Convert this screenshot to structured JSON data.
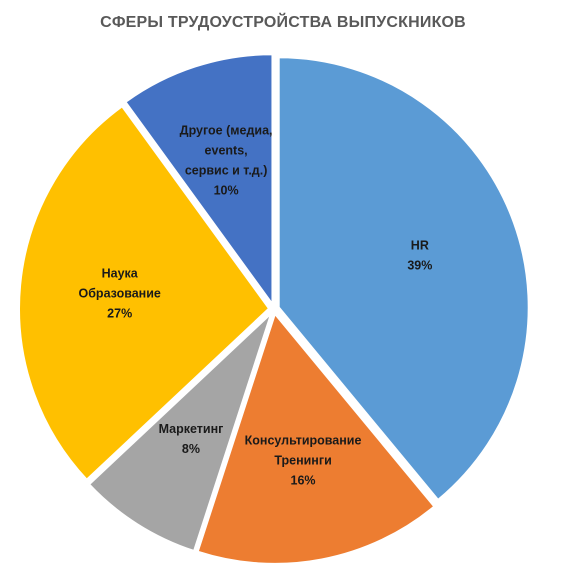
{
  "chart_data": {
    "type": "pie",
    "title": "СФЕРЫ ТРУДОУСТРОЙСТВА ВЫПУСКНИКОВ",
    "slices": [
      {
        "lines": [
          "HR"
        ],
        "value": 39,
        "value_label": "39%",
        "color": "#5B9BD5"
      },
      {
        "lines": [
          "Консультирование",
          "Тренинги"
        ],
        "value": 16,
        "value_label": "16%",
        "color": "#ED7D31"
      },
      {
        "lines": [
          "Маркетинг"
        ],
        "value": 8,
        "value_label": "8%",
        "color": "#A5A5A5"
      },
      {
        "lines": [
          "Наука",
          "Образование"
        ],
        "value": 27,
        "value_label": "27%",
        "color": "#FFC000"
      },
      {
        "lines": [
          "Другое (медиа,",
          "events,",
          "сервис и т.д.)"
        ],
        "value": 10,
        "value_label": "10%",
        "color": "#4472C4"
      }
    ],
    "legend": "none",
    "labels_inside": true
  }
}
